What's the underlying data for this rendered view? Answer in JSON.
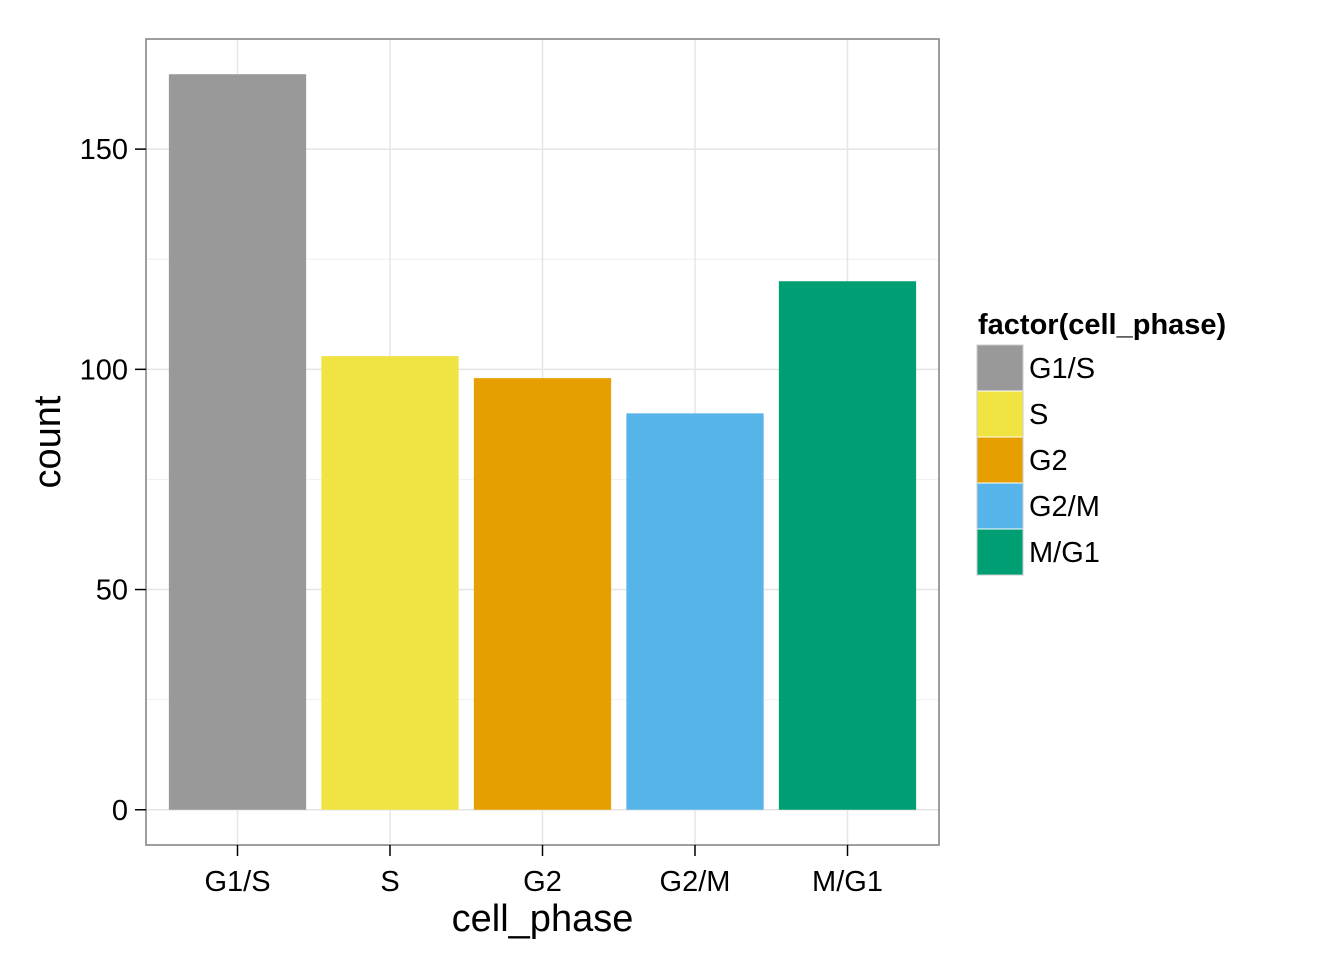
{
  "chart_data": {
    "type": "bar",
    "title": "",
    "xlabel": "cell_phase",
    "ylabel": "count",
    "categories": [
      "G1/S",
      "S",
      "G2",
      "G2/M",
      "M/G1"
    ],
    "values": [
      167,
      103,
      98,
      90,
      120
    ],
    "colors": [
      "#999999",
      "#F0E442",
      "#E69F00",
      "#56B4E9",
      "#009E73"
    ],
    "yticks": [
      0,
      50,
      100,
      150
    ],
    "ylim": [
      -8,
      175
    ],
    "grid": true,
    "legend": {
      "title": "factor(cell_phase)",
      "position": "right",
      "entries": [
        "G1/S",
        "S",
        "G2",
        "G2/M",
        "M/G1"
      ]
    }
  }
}
